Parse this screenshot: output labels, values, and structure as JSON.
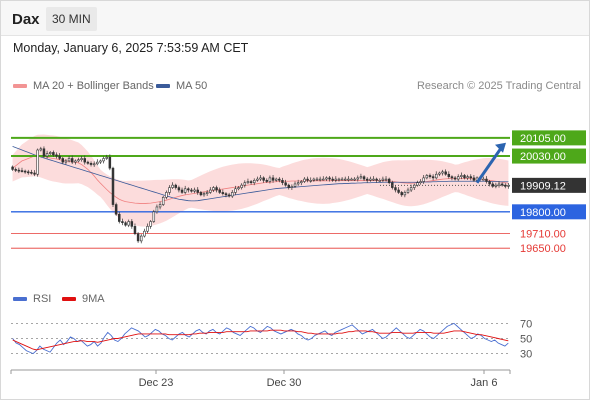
{
  "header": {
    "symbol": "Dax",
    "interval": "30 MIN"
  },
  "timestamp": "Monday, January 6, 2025 7:53:59 AM CET",
  "legend": {
    "ma_label": "MA 20 + Bollinger Bands",
    "ma50_label": "MA 50",
    "rsi_label": "RSI",
    "rsi_ma_label": "9MA",
    "ma_color": "#f08080",
    "ma50_color": "#3b5b9a",
    "rsi_color": "#4a6fd0",
    "rsi_ma_color": "#e01010"
  },
  "credit": "Research © 2025 Trading Central",
  "chart_data": {
    "type": "candlestick",
    "price_range": [
      19560,
      20220
    ],
    "current_price": 19909.12,
    "levels": [
      {
        "value": 20105.0,
        "label": "20105.00",
        "kind": "resistance",
        "color": "#4ea81a"
      },
      {
        "value": 20030.0,
        "label": "20030.00",
        "kind": "resistance",
        "color": "#4ea81a"
      },
      {
        "value": 19800.0,
        "label": "19800.00",
        "kind": "support",
        "color": "#2c64e0"
      },
      {
        "value": 19710.0,
        "label": "19710.00",
        "kind": "support",
        "color": "#e53935"
      },
      {
        "value": 19650.0,
        "label": "19650.00",
        "kind": "support",
        "color": "#e53935"
      }
    ],
    "x_ticks": [
      "Dec 23",
      "Dec 30",
      "Jan 6"
    ],
    "close": [
      19975,
      19972,
      19970,
      19968,
      19965,
      19963,
      19960,
      19955,
      20055,
      20060,
      20030,
      20040,
      20045,
      20035,
      20030,
      20020,
      20005,
      20010,
      20020,
      20005,
      20010,
      20015,
      20020,
      20005,
      20000,
      19995,
      19998,
      20005,
      20010,
      20020,
      20025,
      19980,
      19830,
      19790,
      19760,
      19755,
      19745,
      19760,
      19740,
      19710,
      19680,
      19700,
      19720,
      19740,
      19760,
      19800,
      19820,
      19830,
      19860,
      19880,
      19900,
      19910,
      19900,
      19890,
      19880,
      19895,
      19890,
      19885,
      19890,
      19880,
      19870,
      19875,
      19880,
      19890,
      19900,
      19890,
      19880,
      19875,
      19870,
      19865,
      19880,
      19895,
      19900,
      19910,
      19920,
      19925,
      19920,
      19930,
      19935,
      19940,
      19930,
      19925,
      19940,
      19930,
      19935,
      19930,
      19920,
      19910,
      19900,
      19905,
      19915,
      19920,
      19925,
      19935,
      19930,
      19930,
      19935,
      19935,
      19935,
      19935,
      19940,
      19935,
      19930,
      19935,
      19935,
      19935,
      19935,
      19935,
      19935,
      19935,
      19940,
      19945,
      19935,
      19930,
      19935,
      19935,
      19930,
      19930,
      19935,
      19935,
      19920,
      19900,
      19890,
      19880,
      19870,
      19880,
      19890,
      19900,
      19910,
      19920,
      19925,
      19940,
      19950,
      19945,
      19940,
      19955,
      19960,
      19965,
      19955,
      19945,
      19940,
      19935,
      19945,
      19950,
      19940,
      19945,
      19940,
      19930,
      19940,
      19935,
      19935,
      19925,
      19915,
      19905,
      19910,
      19915,
      19910,
      19905,
      19909.12
    ],
    "ma20": [
      19980,
      19990,
      20000,
      20010,
      20015,
      20020,
      20025,
      20030,
      20032,
      20030,
      20028,
      20025,
      20022,
      20020,
      20018,
      20015,
      20012,
      20010,
      20008,
      20006,
      20004,
      20002,
      19995,
      19985,
      19975,
      19962,
      19948,
      19932,
      19918,
      19905,
      19892,
      19880,
      19870,
      19860,
      19852,
      19846,
      19842,
      19840,
      19838,
      19836,
      19835,
      19834,
      19834,
      19835,
      19836,
      19838,
      19840,
      19842,
      19845,
      19848,
      19852,
      19856,
      19860,
      19864,
      19867,
      19870,
      19872,
      19874,
      19876,
      19878,
      19880,
      19882,
      19884,
      19886,
      19888,
      19890,
      19892,
      19894,
      19896,
      19898,
      19900,
      19902,
      19904,
      19906,
      19908,
      19910,
      19912,
      19914,
      19916,
      19918,
      19920,
      19921,
      19922,
      19923,
      19924,
      19925,
      19926,
      19926,
      19926,
      19927,
      19927,
      19927,
      19928,
      19928,
      19928,
      19928,
      19928,
      19928,
      19928,
      19928,
      19928,
      19928,
      19929,
      19929,
      19929,
      19929,
      19929,
      19929,
      19929,
      19929,
      19929,
      19929,
      19929,
      19929,
      19929,
      19929,
      19929,
      19929,
      19929,
      19928,
      19927,
      19926,
      19924,
      19922,
      19920,
      19919,
      19918,
      19918,
      19919,
      19920,
      19921,
      19923,
      19925,
      19927,
      19929,
      19931,
      19933,
      19935,
      19936,
      19937,
      19938,
      19938,
      19938,
      19938,
      19938,
      19937,
      19937,
      19936,
      19935,
      19934,
      19933,
      19932,
      19930,
      19928,
      19926,
      19924,
      19922,
      19920,
      19918
    ],
    "ma50": [
      20070,
      20065,
      20060,
      20055,
      20050,
      20045,
      20040,
      20035,
      20030,
      20026,
      20022,
      20018,
      20014,
      20010,
      20006,
      20002,
      19998,
      19994,
      19990,
      19986,
      19982,
      19978,
      19974,
      19970,
      19966,
      19962,
      19958,
      19954,
      19950,
      19946,
      19942,
      19938,
      19934,
      19930,
      19926,
      19922,
      19918,
      19914,
      19910,
      19906,
      19902,
      19898,
      19894,
      19890,
      19886,
      19882,
      19878,
      19874,
      19870,
      19866,
      19862,
      19858,
      19855,
      19852,
      19850,
      19848,
      19846,
      19845,
      19845,
      19846,
      19848,
      19850,
      19852,
      19854,
      19856,
      19858,
      19860,
      19862,
      19864,
      19866,
      19868,
      19870,
      19872,
      19874,
      19876,
      19878,
      19880,
      19882,
      19884,
      19886,
      19888,
      19890,
      19892,
      19894,
      19896,
      19897,
      19898,
      19899,
      19900,
      19901,
      19902,
      19903,
      19904,
      19905,
      19906,
      19907,
      19908,
      19909,
      19910,
      19911,
      19912,
      19913,
      19914,
      19915,
      19916,
      19916,
      19917,
      19917,
      19918,
      19918,
      19919,
      19919,
      19920,
      19920,
      19920,
      19921,
      19921,
      19921,
      19922,
      19922,
      19922,
      19922,
      19922,
      19922,
      19922,
      19922,
      19922,
      19922,
      19922,
      19922,
      19922,
      19923,
      19923,
      19923,
      19924,
      19924,
      19925,
      19925,
      19925,
      19926,
      19926,
      19926,
      19926,
      19926,
      19926,
      19926,
      19926,
      19926,
      19926,
      19926,
      19926,
      19926,
      19925,
      19925,
      19925,
      19924,
      19924,
      19924,
      19924
    ],
    "rsi_ticks": [
      70,
      50,
      30
    ],
    "rsi": [
      50,
      44,
      42,
      38,
      34,
      32,
      30,
      34,
      40,
      36,
      34,
      32,
      38,
      44,
      48,
      42,
      46,
      52,
      50,
      46,
      48,
      44,
      40,
      42,
      46,
      40,
      44,
      52,
      58,
      54,
      48,
      46,
      50,
      56,
      60,
      64,
      62,
      60,
      56,
      52,
      54,
      58,
      62,
      60,
      56,
      54,
      50,
      48,
      52,
      56,
      58,
      54,
      52,
      56,
      60,
      62,
      58,
      56,
      60,
      62,
      58,
      56,
      60,
      64,
      62,
      58,
      56,
      54,
      58,
      62,
      66,
      64,
      60,
      58,
      62,
      66,
      64,
      60,
      58,
      56,
      58,
      60,
      62,
      60,
      56,
      54,
      50,
      48,
      50,
      54,
      56,
      58,
      60,
      56,
      54,
      58,
      60,
      62,
      64,
      66,
      68,
      64,
      60,
      56,
      58,
      60,
      62,
      58,
      54,
      50,
      52,
      56,
      60,
      64,
      60,
      56,
      52,
      50,
      54,
      58,
      62,
      60,
      56,
      52,
      50,
      54,
      58,
      62,
      66,
      68,
      70,
      66,
      62,
      58,
      54,
      50,
      52,
      56,
      54,
      50,
      48,
      46,
      48,
      44,
      42,
      40,
      44
    ],
    "rsi_ma": [
      48,
      46,
      44,
      42,
      40,
      38,
      36,
      35,
      36,
      37,
      38,
      39,
      40,
      41,
      42,
      43,
      44,
      45,
      46,
      46,
      47,
      47,
      46,
      46,
      46,
      45,
      46,
      47,
      48,
      49,
      50,
      50,
      51,
      52,
      53,
      54,
      55,
      56,
      56,
      56,
      56,
      56,
      56,
      56,
      56,
      56,
      55,
      55,
      55,
      55,
      55,
      55,
      55,
      56,
      56,
      57,
      57,
      57,
      58,
      58,
      58,
      58,
      58,
      59,
      59,
      59,
      59,
      59,
      59,
      59,
      60,
      60,
      60,
      60,
      60,
      60,
      61,
      61,
      61,
      61,
      60,
      60,
      60,
      60,
      59,
      59,
      58,
      57,
      57,
      56,
      56,
      56,
      56,
      56,
      56,
      56,
      57,
      57,
      58,
      59,
      59,
      60,
      60,
      60,
      60,
      59,
      59,
      58,
      57,
      57,
      57,
      57,
      58,
      58,
      58,
      57,
      57,
      57,
      57,
      58,
      58,
      58,
      58,
      58,
      57,
      57,
      57,
      57,
      58,
      59,
      60,
      60,
      60,
      59,
      58,
      57,
      56,
      55,
      55,
      54,
      53,
      52,
      51,
      50,
      49,
      48,
      47
    ]
  }
}
